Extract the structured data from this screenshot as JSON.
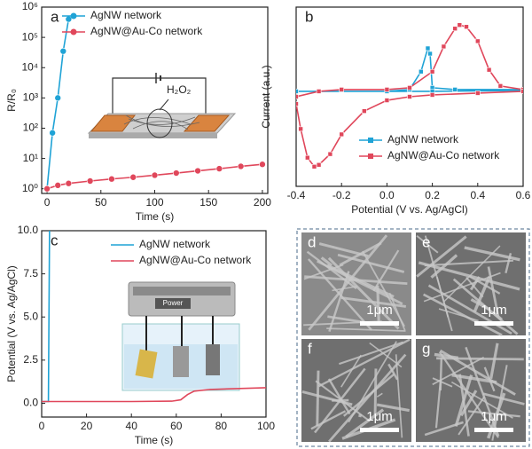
{
  "chart_data": [
    {
      "type": "line",
      "panel_label": "a",
      "x_label": "Time (s)",
      "y_label": "R/R₀",
      "log_y": true,
      "xlim": [
        -5,
        205
      ],
      "xticks": [
        0,
        50,
        100,
        150,
        200
      ],
      "ylim": [
        0.7,
        1000000
      ],
      "yticks": [
        {
          "value": 1,
          "label": "10⁰"
        },
        {
          "value": 10,
          "label": "10¹"
        },
        {
          "value": 100,
          "label": "10²"
        },
        {
          "value": 1000,
          "label": "10³"
        },
        {
          "value": 10000,
          "label": "10⁴"
        },
        {
          "value": 100000,
          "label": "10⁵"
        },
        {
          "value": 1000000,
          "label": "10⁶"
        }
      ],
      "legend": "top-left",
      "annotation": "H₂O₂",
      "series": [
        {
          "name": "AgNW network",
          "color": "#1fa3d6",
          "marker": "circle",
          "x": [
            0,
            5,
            10,
            15,
            20
          ],
          "values": [
            1,
            70,
            1000,
            35000,
            400000
          ]
        },
        {
          "name": "AgNW@Au-Co network",
          "color": "#e0475b",
          "marker": "circle",
          "x": [
            0,
            10,
            20,
            40,
            60,
            80,
            100,
            120,
            140,
            160,
            180,
            200
          ],
          "values": [
            1,
            1.3,
            1.5,
            1.8,
            2.1,
            2.4,
            2.8,
            3.3,
            3.9,
            4.6,
            5.5,
            6.4
          ]
        }
      ]
    },
    {
      "type": "line",
      "panel_label": "b",
      "x_label": "Potential (V vs. Ag/AgCl)",
      "y_label": "Current (a.u.)",
      "xlim": [
        -0.4,
        0.6
      ],
      "xticks": [
        -0.4,
        -0.2,
        {
          "value": 0,
          "label": "0.0"
        },
        0.2,
        0.4,
        0.6
      ],
      "ylim": [
        0,
        10
      ],
      "legend": "lower-right",
      "series": [
        {
          "name": "AgNW network",
          "color": "#1fa3d6",
          "marker": "square",
          "x": [
            -0.4,
            0,
            0.1,
            0.15,
            0.18,
            0.19,
            0.2,
            0.3,
            0.6,
            0.6,
            0.2,
            -0.4
          ],
          "values": [
            5.3,
            5.3,
            5.4,
            6.4,
            7.7,
            7.4,
            5.5,
            5.4,
            5.4,
            5.35,
            5.3,
            5.3
          ]
        },
        {
          "name": "AgNW@Au-Co network",
          "color": "#e0475b",
          "marker": "square",
          "x": [
            -0.4,
            -0.3,
            -0.2,
            0,
            0.1,
            0.2,
            0.25,
            0.3,
            0.32,
            0.35,
            0.4,
            0.45,
            0.5,
            0.6,
            0.6,
            0.4,
            0.2,
            0.1,
            0,
            -0.1,
            -0.2,
            -0.25,
            -0.3,
            -0.32,
            -0.35,
            -0.38,
            -0.4
          ],
          "values": [
            5.0,
            5.3,
            5.4,
            5.4,
            5.5,
            6.4,
            7.8,
            8.8,
            9.0,
            8.9,
            8.1,
            6.5,
            5.6,
            5.4,
            5.3,
            5.2,
            5.1,
            5.0,
            4.8,
            4.2,
            2.9,
            1.8,
            1.2,
            1.1,
            1.6,
            3.2,
            4.6
          ]
        }
      ]
    },
    {
      "type": "line",
      "panel_label": "c",
      "x_label": "Time (s)",
      "y_label": "Potential (V vs. Ag/AgCl)",
      "xlim": [
        0,
        100
      ],
      "xticks": [
        0,
        20,
        40,
        60,
        80,
        100
      ],
      "ylim": [
        -0.8,
        10
      ],
      "yticks": [
        {
          "value": 0,
          "label": "0.0"
        },
        {
          "value": 2.5,
          "label": "2.5"
        },
        {
          "value": 5,
          "label": "5.0"
        },
        {
          "value": 7.5,
          "label": "7.5"
        },
        {
          "value": 10,
          "label": "10.0"
        }
      ],
      "legend": "top-center",
      "annotation": "Power",
      "series": [
        {
          "name": "AgNW network",
          "color": "#1fa3d6",
          "x": [
            0,
            3,
            3.5
          ],
          "values": [
            0.1,
            0.1,
            10
          ]
        },
        {
          "name": "AgNW@Au-Co network",
          "color": "#e0475b",
          "x": [
            0,
            20,
            40,
            58,
            62,
            65,
            68,
            75,
            100
          ],
          "values": [
            0.1,
            0.1,
            0.1,
            0.12,
            0.2,
            0.5,
            0.7,
            0.8,
            0.9
          ]
        }
      ]
    }
  ],
  "sem_panels": [
    {
      "label": "d",
      "scale_bar": "1μm"
    },
    {
      "label": "e",
      "scale_bar": "1μm"
    },
    {
      "label": "f",
      "scale_bar": "1μm"
    },
    {
      "label": "g",
      "scale_bar": "1μm"
    }
  ]
}
